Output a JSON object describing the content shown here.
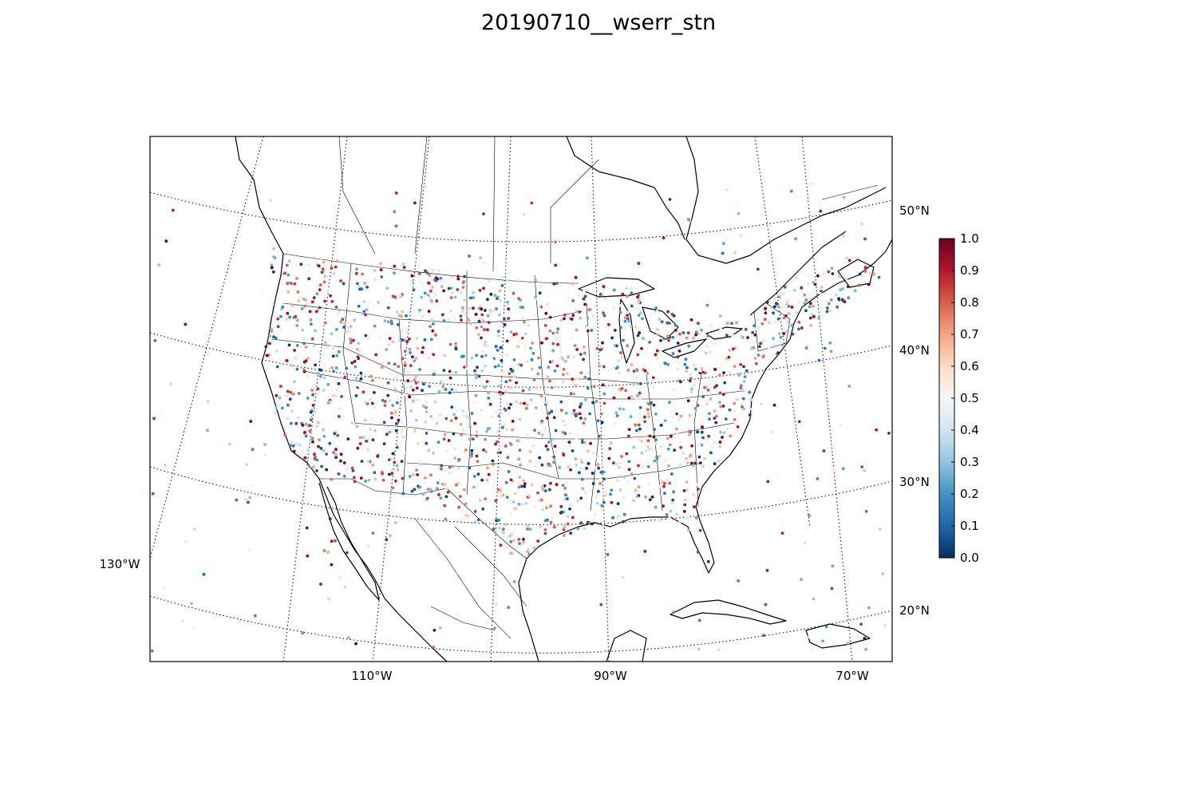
{
  "title": "20190710__wserr_stn",
  "map": {
    "longitude_labels": [
      "130°W",
      "110°W",
      "90°W",
      "70°W"
    ],
    "latitude_labels": [
      "50°N",
      "40°N",
      "30°N",
      "20°N"
    ],
    "graticule_style": "dotted",
    "coastline_color": "#000000"
  },
  "colorbar": {
    "colormap": "RdBu_r",
    "min": 0.0,
    "max": 1.0,
    "tick_labels": [
      "0.0",
      "0.1",
      "0.2",
      "0.3",
      "0.4",
      "0.5",
      "0.6",
      "0.7",
      "0.8",
      "0.9",
      "1.0"
    ],
    "stops": [
      "#053061",
      "#2166ac",
      "#4393c3",
      "#92c5de",
      "#d1e5f0",
      "#f7f7f7",
      "#fddbc7",
      "#f4a582",
      "#d6604d",
      "#b2182b",
      "#67001f"
    ]
  }
}
